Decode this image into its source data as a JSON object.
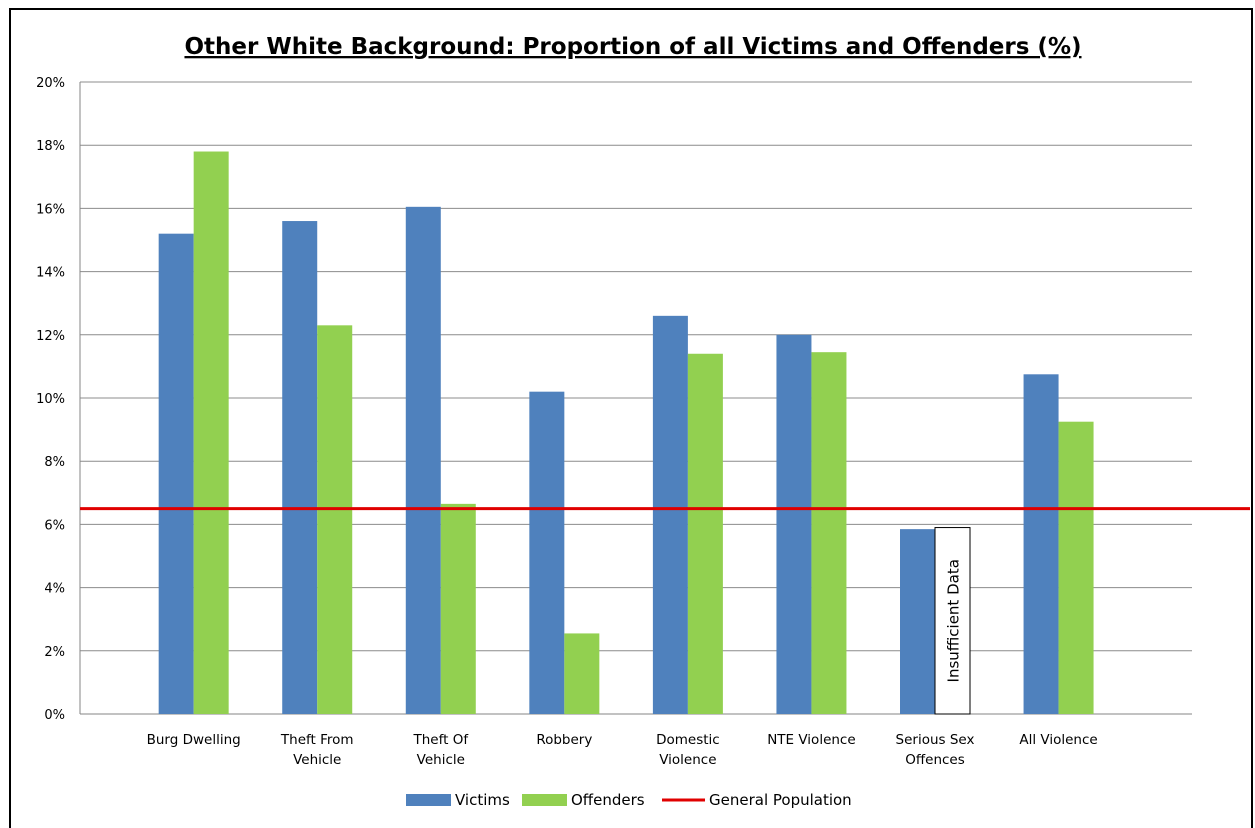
{
  "chart_data": {
    "type": "bar",
    "title": "Other White Background: Proportion of  all Victims and Offenders (%)",
    "xlabel": "",
    "ylabel": "",
    "ylim": [
      0,
      20
    ],
    "ytick_step": 2,
    "ytick_suffix": "%",
    "grid": true,
    "legend_position": "bottom",
    "categories": [
      [
        "Burg Dwelling"
      ],
      [
        "Theft From",
        "Vehicle"
      ],
      [
        "Theft Of",
        "Vehicle"
      ],
      [
        "Robbery"
      ],
      [
        "Domestic",
        "Violence"
      ],
      [
        "NTE Violence"
      ],
      [
        "Serious Sex",
        "Offences"
      ],
      [
        "All Violence"
      ]
    ],
    "series": [
      {
        "name": "Victims",
        "color": "#4f81bd",
        "values": [
          15.2,
          15.6,
          16.05,
          10.2,
          12.6,
          12.0,
          5.85,
          10.75
        ]
      },
      {
        "name": "Offenders",
        "color": "#92d050",
        "values": [
          17.8,
          12.3,
          6.65,
          2.55,
          11.4,
          11.45,
          null,
          9.25
        ]
      }
    ],
    "reference_line": {
      "name": "General Population",
      "value": 6.5,
      "color": "#e00000"
    },
    "annotations": [
      {
        "text": "Insufficient Data",
        "category_index": 6,
        "series_index": 1,
        "value": 5.9
      }
    ]
  }
}
